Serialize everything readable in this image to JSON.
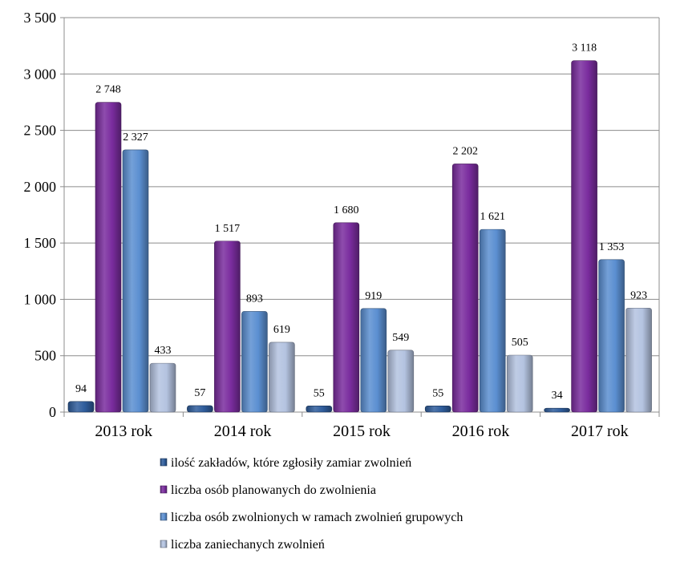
{
  "chart_data": {
    "type": "bar",
    "categories": [
      "2013 rok",
      "2014 rok",
      "2015 rok",
      "2016 rok",
      "2017 rok"
    ],
    "series": [
      {
        "name": "ilość zakładów, które zgłosiły zamiar zwolnień",
        "values": [
          94,
          57,
          55,
          55,
          34
        ],
        "labels": [
          "94",
          "57",
          "55",
          "55",
          "34"
        ],
        "color": "#2f5d9c"
      },
      {
        "name": "liczba osób planowanych do zwolnienia",
        "values": [
          2748,
          1517,
          1680,
          2202,
          3118
        ],
        "labels": [
          "2 748",
          "1 517",
          "1 680",
          "2 202",
          "3 118"
        ],
        "color": "#7a2c9e"
      },
      {
        "name": "liczba osób zwolnionych w ramach zwolnień grupowych",
        "values": [
          2327,
          893,
          919,
          1621,
          1353
        ],
        "labels": [
          "2 327",
          "893",
          "919",
          "1 621",
          "1 353"
        ],
        "color": "#5b8fd1"
      },
      {
        "name": "liczba zaniechanych zwolnień",
        "values": [
          433,
          619,
          549,
          505,
          923
        ],
        "labels": [
          "433",
          "619",
          "549",
          "505",
          "923"
        ],
        "color": "#b4c3e0"
      }
    ],
    "yticks": [
      "0",
      "500",
      "1 000",
      "1 500",
      "2 000",
      "2 500",
      "3 000",
      "3 500"
    ],
    "ylim": [
      0,
      3500
    ],
    "grid": true,
    "legend_position": "bottom"
  }
}
